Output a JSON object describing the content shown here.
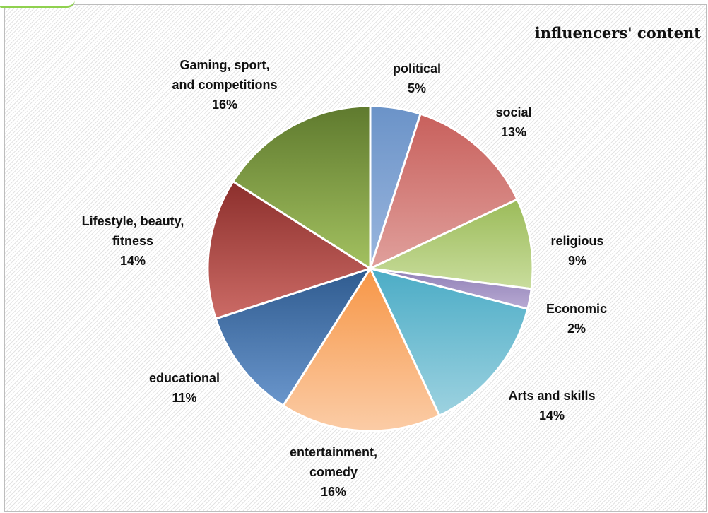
{
  "chart_data": {
    "type": "pie",
    "title": "influencers' content",
    "slices": [
      {
        "label": "political",
        "value": 5,
        "percent_label": "5%",
        "color": "#6b93c8",
        "color_light": "#9ab6de"
      },
      {
        "label": "social",
        "value": 13,
        "percent_label": "13%",
        "color": "#c8605c",
        "color_light": "#e0a09c"
      },
      {
        "label": "religious",
        "value": 9,
        "percent_label": "9%",
        "color": "#9bbb59",
        "color_light": "#c9dd9d"
      },
      {
        "label": "Economic",
        "value": 2,
        "percent_label": "2%",
        "color": "#8f7fb5",
        "color_light": "#b8aad3"
      },
      {
        "label": "Arts and skills",
        "value": 14,
        "percent_label": "14%",
        "color": "#4bacc6",
        "color_light": "#9dd2e0"
      },
      {
        "label": "entertainment, comedy",
        "value": 16,
        "percent_label": "16%",
        "color": "#f79646",
        "color_light": "#fbcca6"
      },
      {
        "label": "educational",
        "value": 11,
        "percent_label": "11%",
        "color": "#2f5b8f",
        "color_light": "#6a96cc"
      },
      {
        "label": "Lifestyle, beauty, fitness",
        "value": 14,
        "percent_label": "14%",
        "color": "#8c2f2c",
        "color_light": "#cc6b66"
      },
      {
        "label": "Gaming, sport, and competitions",
        "value": 16,
        "percent_label": "16%",
        "color": "#5f7a2e",
        "color_light": "#a3c160"
      }
    ],
    "legend": "none"
  }
}
